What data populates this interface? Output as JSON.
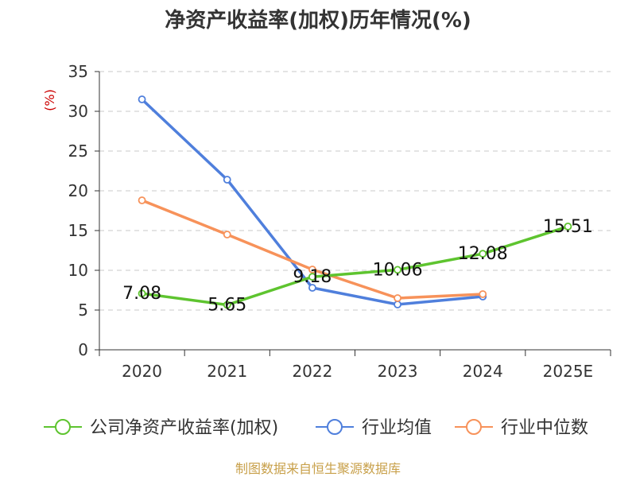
{
  "chart_data": {
    "type": "line",
    "title": "净资产收益率(加权)历年情况(%)",
    "ylabel": "(%)",
    "xlabel": "",
    "ylim": [
      0,
      35
    ],
    "yticks": [
      0,
      5,
      10,
      15,
      20,
      25,
      30,
      35
    ],
    "categories": [
      "2020",
      "2021",
      "2022",
      "2023",
      "2024",
      "2025E"
    ],
    "grid": true,
    "legend": "bottom",
    "series": [
      {
        "name": "公司净资产收益率(加权)",
        "color": "#5ec42f",
        "values": [
          7.08,
          5.65,
          9.18,
          10.06,
          12.08,
          15.51
        ],
        "labels": [
          "7.08",
          "5.65",
          "9.18",
          "10.06",
          "12.08",
          "15.51"
        ]
      },
      {
        "name": "行业均值",
        "color": "#4f7fdc",
        "values": [
          31.5,
          21.4,
          7.8,
          5.7,
          6.7,
          null
        ]
      },
      {
        "name": "行业中位数",
        "color": "#f7925a",
        "values": [
          18.8,
          14.5,
          10.1,
          6.5,
          7.0,
          null
        ]
      }
    ]
  },
  "source": "制图数据来自恒生聚源数据库"
}
